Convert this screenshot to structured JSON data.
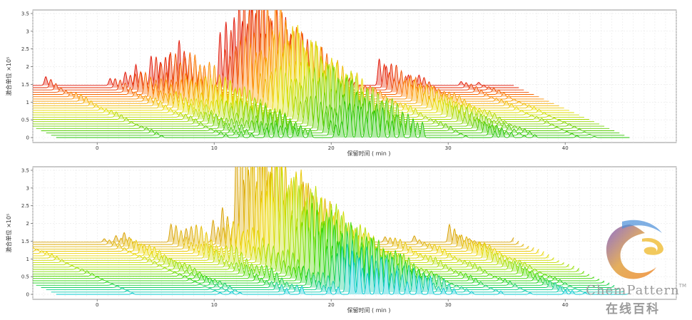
{
  "chart_data": [
    {
      "type": "line",
      "variant": "3d-waterfall-chromatogram",
      "color_scale": [
        "#1fc400",
        "#7fd400",
        "#e8e000",
        "#ff8a00",
        "#e01000"
      ],
      "ylabel": "激合单位 ×10⁵",
      "xlabel": "保留时间 ( min )",
      "ylim": [
        0,
        3.6
      ],
      "yticks": [
        "0",
        "0.5",
        "1",
        "1.5",
        "2",
        "2.5",
        "3",
        "3.5"
      ],
      "xticks": [
        "0",
        "10",
        "20",
        "30",
        "40"
      ],
      "xlim": [
        -5.5,
        49.5
      ],
      "grid": true,
      "trace_count": 24,
      "max_peak": 3.5,
      "peaks": [
        {
          "t": 5.5,
          "h": 0.25
        },
        {
          "t": 11.0,
          "h": 0.3
        },
        {
          "t": 12.3,
          "h": 0.7
        },
        {
          "t": 13.2,
          "h": 0.65
        },
        {
          "t": 14.5,
          "h": 0.9
        },
        {
          "t": 15.3,
          "h": 1.2
        },
        {
          "t": 16.1,
          "h": 1.4
        },
        {
          "t": 16.9,
          "h": 1.3
        },
        {
          "t": 17.4,
          "h": 1.0
        },
        {
          "t": 18.2,
          "h": 0.8
        },
        {
          "t": 20.4,
          "h": 2.0
        },
        {
          "t": 20.9,
          "h": 1.8
        },
        {
          "t": 21.6,
          "h": 2.8
        },
        {
          "t": 22.3,
          "h": 3.5
        },
        {
          "t": 23.0,
          "h": 3.3
        },
        {
          "t": 23.7,
          "h": 2.6
        },
        {
          "t": 24.4,
          "h": 2.5
        },
        {
          "t": 25.2,
          "h": 2.2
        },
        {
          "t": 26.0,
          "h": 2.0
        },
        {
          "t": 27.0,
          "h": 1.6
        },
        {
          "t": 27.8,
          "h": 1.4
        },
        {
          "t": 31.5,
          "h": 0.3
        },
        {
          "t": 34.0,
          "h": 0.75
        },
        {
          "t": 34.6,
          "h": 0.75
        },
        {
          "t": 35.4,
          "h": 0.55
        },
        {
          "t": 36.5,
          "h": 0.35
        },
        {
          "t": 37.4,
          "h": 0.3
        },
        {
          "t": 41.0,
          "h": 0.18
        },
        {
          "t": 42.5,
          "h": 0.15
        },
        {
          "t": 46.0,
          "h": 0.45
        },
        {
          "t": 46.8,
          "h": 0.25
        }
      ]
    },
    {
      "type": "line",
      "variant": "3d-waterfall-chromatogram",
      "color_scale": [
        "#00c8d0",
        "#22d400",
        "#9ee000",
        "#f0d800",
        "#d8a000"
      ],
      "ylabel": "激合单位 ×10⁵",
      "xlabel": "保留时间 ( min )",
      "ylim": [
        0,
        3.6
      ],
      "yticks": [
        "0",
        "0.5",
        "1",
        "1.5",
        "2",
        "2.5",
        "3",
        "3.5"
      ],
      "xticks": [
        "0",
        "10",
        "20",
        "30",
        "40"
      ],
      "xlim": [
        -5.5,
        49.5
      ],
      "grid": true,
      "trace_count": 24,
      "max_peak": 3.65,
      "peaks": [
        {
          "t": 3.0,
          "h": 0.15
        },
        {
          "t": 10.5,
          "h": 0.15
        },
        {
          "t": 11.5,
          "h": 0.35
        },
        {
          "t": 12.2,
          "h": 0.3
        },
        {
          "t": 16.2,
          "h": 0.55
        },
        {
          "t": 17.5,
          "h": 0.7
        },
        {
          "t": 19.8,
          "h": 1.0
        },
        {
          "t": 20.6,
          "h": 1.0
        },
        {
          "t": 21.8,
          "h": 3.65
        },
        {
          "t": 22.4,
          "h": 3.5
        },
        {
          "t": 23.1,
          "h": 3.3
        },
        {
          "t": 23.9,
          "h": 3.0
        },
        {
          "t": 24.7,
          "h": 2.9
        },
        {
          "t": 25.6,
          "h": 2.6
        },
        {
          "t": 26.5,
          "h": 2.0
        },
        {
          "t": 27.5,
          "h": 1.8
        },
        {
          "t": 28.5,
          "h": 1.5
        },
        {
          "t": 29.6,
          "h": 0.8
        },
        {
          "t": 30.5,
          "h": 0.8
        },
        {
          "t": 32.0,
          "h": 0.25
        },
        {
          "t": 34.5,
          "h": 0.3
        },
        {
          "t": 37.0,
          "h": 0.25
        },
        {
          "t": 40.0,
          "h": 0.5
        },
        {
          "t": 40.6,
          "h": 0.3
        },
        {
          "t": 41.7,
          "h": 0.2
        },
        {
          "t": 45.5,
          "h": 0.15
        },
        {
          "t": 46.5,
          "h": 0.1
        }
      ]
    }
  ],
  "watermark": {
    "brand": "ChemPattern",
    "trademark": "TM",
    "subtitle": "在线百科"
  }
}
